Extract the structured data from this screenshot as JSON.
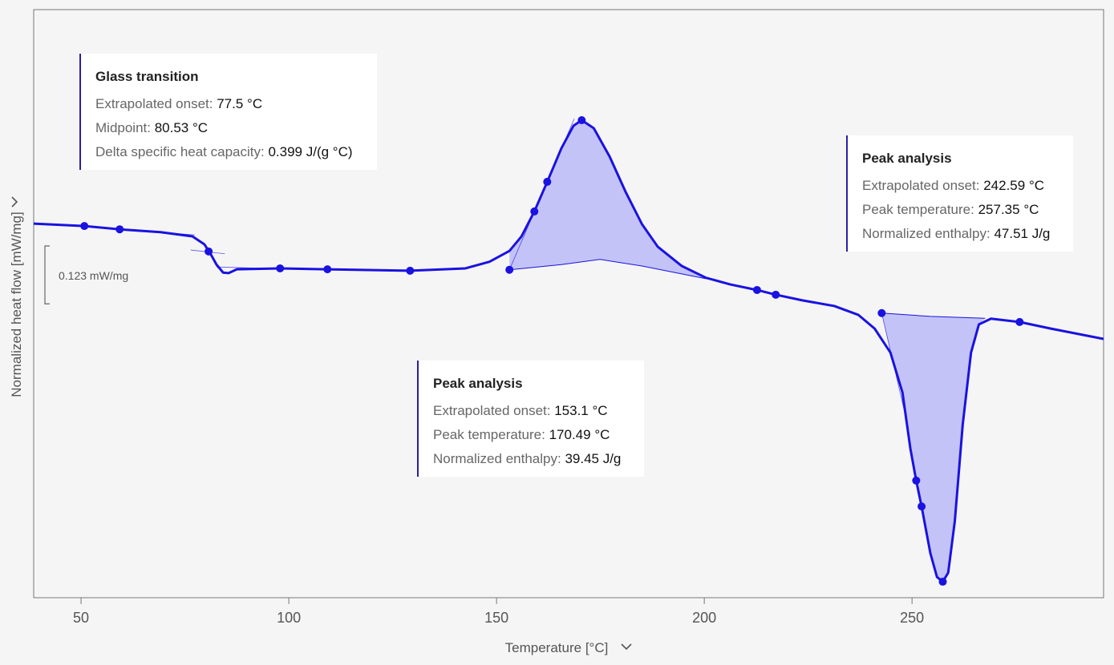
{
  "chart_data": {
    "type": "line",
    "x_label": "Temperature [°C]",
    "y_label": "Normalized heat flow [mW/mg]",
    "xlim": [
      38.6,
      296.1
    ],
    "ylim": [
      -0.6,
      0.65
    ],
    "xticks": [
      50,
      100,
      150,
      200,
      250
    ],
    "color": "#1a12e0",
    "fill_color": "#c3c3f7",
    "x": [
      38.6,
      50.8,
      59.3,
      69.1,
      76.8,
      79.7,
      81.1,
      82.6,
      84.2,
      85.5,
      87.5,
      97.9,
      109.3,
      129.2,
      142.5,
      148.3,
      153.1,
      156.0,
      159.1,
      162.2,
      165.6,
      168.5,
      170.5,
      173.4,
      177.2,
      181.1,
      185.0,
      188.8,
      194.6,
      200.4,
      206.2,
      212.7,
      217.2,
      223.6,
      231.3,
      237.1,
      241.0,
      244.8,
      247.7,
      249.6,
      251.0,
      252.3,
      254.4,
      256.0,
      257.4,
      258.7,
      260.3,
      262.2,
      264.2,
      266.1,
      269.0,
      275.9,
      283.4,
      296.1
    ],
    "values": [
      0.195,
      0.19,
      0.183,
      0.177,
      0.168,
      0.151,
      0.132,
      0.108,
      0.091,
      0.09,
      0.098,
      0.1,
      0.098,
      0.095,
      0.1,
      0.114,
      0.137,
      0.168,
      0.221,
      0.284,
      0.355,
      0.403,
      0.415,
      0.398,
      0.338,
      0.262,
      0.194,
      0.146,
      0.105,
      0.08,
      0.066,
      0.054,
      0.044,
      0.032,
      0.02,
      0.001,
      -0.028,
      -0.079,
      -0.164,
      -0.283,
      -0.351,
      -0.406,
      -0.505,
      -0.556,
      -0.566,
      -0.547,
      -0.437,
      -0.232,
      -0.079,
      -0.019,
      -0.007,
      -0.014,
      -0.028,
      -0.05
    ],
    "points": {
      "x": [
        50.8,
        59.3,
        80.7,
        97.9,
        109.3,
        129.2,
        153.1,
        159.1,
        162.2,
        170.5,
        212.7,
        217.2,
        242.7,
        251.0,
        252.3,
        257.4,
        275.9
      ],
      "y": [
        0.19,
        0.183,
        0.136,
        0.1,
        0.098,
        0.095,
        0.097,
        0.221,
        0.284,
        0.415,
        0.054,
        0.044,
        0.005,
        -0.351,
        -0.406,
        -0.566,
        -0.014
      ]
    },
    "baselines": [
      {
        "x": [
          153.1,
          165.6,
          174.9,
          185.0,
          200.4
        ],
        "y": [
          0.097,
          0.108,
          0.119,
          0.105,
          0.078
        ]
      },
      {
        "x": [
          242.7,
          254.4,
          267.6
        ],
        "y": [
          0.005,
          -0.002,
          -0.006
        ]
      }
    ],
    "tangents": [
      {
        "x": [
          45.0,
          77.4
        ],
        "y": [
          0.194,
          0.171
        ]
      },
      {
        "x": [
          76.4,
          84.6
        ],
        "y": [
          0.139,
          0.131
        ]
      },
      {
        "x": [
          82.6,
          94.2
        ],
        "y": [
          0.103,
          0.1
        ]
      },
      {
        "x": [
          153.1,
          168.7
        ],
        "y": [
          0.097,
          0.418
        ]
      },
      {
        "x": [
          242.7,
          248.6
        ],
        "y": [
          0.005,
          -0.22
        ]
      }
    ],
    "scale_bar": {
      "value": 0.123,
      "label": "0.123 mW/mg"
    },
    "annotations": [
      {
        "title": "Glass transition",
        "rows": [
          {
            "label": "Extrapolated onset:",
            "value": "77.5 °C"
          },
          {
            "label": "Midpoint:",
            "value": "80.53 °C"
          },
          {
            "label": "Delta specific heat capacity:",
            "value": "0.399 J/(g °C)"
          }
        ]
      },
      {
        "title": "Peak analysis",
        "rows": [
          {
            "label": "Extrapolated onset:",
            "value": "153.1 °C"
          },
          {
            "label": "Peak temperature:",
            "value": "170.49 °C"
          },
          {
            "label": "Normalized enthalpy:",
            "value": "39.45 J/g"
          }
        ]
      },
      {
        "title": "Peak analysis",
        "rows": [
          {
            "label": "Extrapolated onset:",
            "value": "242.59 °C"
          },
          {
            "label": "Peak temperature:",
            "value": "257.35 °C"
          },
          {
            "label": "Normalized enthalpy:",
            "value": "47.51 J/g"
          }
        ]
      }
    ]
  }
}
